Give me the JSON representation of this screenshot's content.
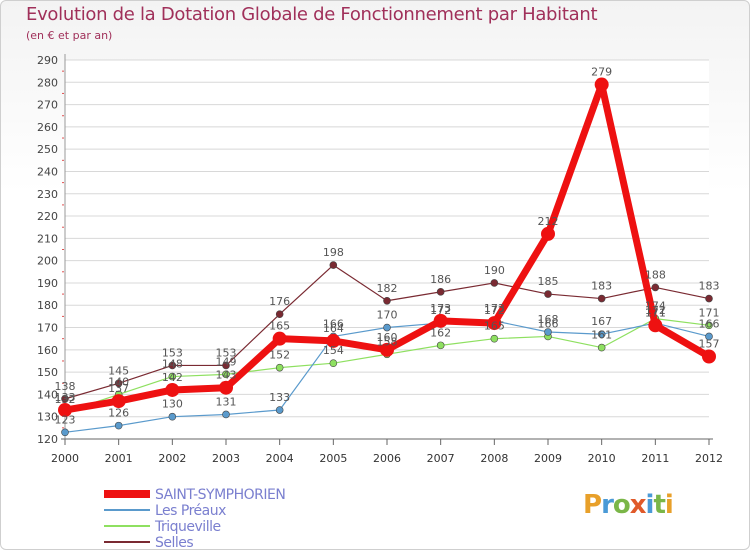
{
  "title": "Evolution de la Dotation Globale de Fonctionnement par Habitant",
  "subtitle": "(en € et par an)",
  "logo": {
    "letters": [
      "P",
      "r",
      "o",
      "x",
      "i",
      "t",
      "i"
    ],
    "colors": [
      "#e8a02a",
      "#4a9ad6",
      "#7ab648",
      "#e05a2a",
      "#4a9ad6",
      "#7ab648",
      "#e8a02a"
    ]
  },
  "chart_data": {
    "type": "line",
    "x": [
      "2000",
      "2001",
      "2002",
      "2003",
      "2004",
      "2005",
      "2006",
      "2007",
      "2008",
      "2009",
      "2010",
      "2011",
      "2012"
    ],
    "ylim": [
      120,
      290
    ],
    "yticks": [
      120,
      130,
      140,
      150,
      160,
      170,
      180,
      190,
      200,
      210,
      220,
      230,
      240,
      250,
      260,
      270,
      280,
      290
    ],
    "series": [
      {
        "name": "Selles",
        "color": "#7a2a32",
        "width": 1.2,
        "marker": 3.5,
        "values": [
          138,
          145,
          153,
          153,
          176,
          198,
          182,
          186,
          190,
          185,
          183,
          188,
          183
        ]
      },
      {
        "name": "Triqueville",
        "color": "#8ee060",
        "width": 1.2,
        "marker": 3.5,
        "values": [
          132,
          140,
          148,
          149,
          152,
          154,
          158,
          162,
          165,
          166,
          161,
          174,
          171
        ]
      },
      {
        "name": "Les Préaux",
        "color": "#5a9acc",
        "width": 1.2,
        "marker": 3.5,
        "values": [
          123,
          126,
          130,
          131,
          133,
          166,
          170,
          172,
          173,
          168,
          167,
          172,
          166
        ]
      },
      {
        "name": "SAINT-SYMPHORIEN",
        "color": "#ee1111",
        "width": 7,
        "marker": 7,
        "values": [
          133,
          137,
          142,
          143,
          165,
          164,
          160,
          173,
          172,
          212,
          279,
          171,
          157
        ]
      }
    ],
    "legend_order": [
      "SAINT-SYMPHORIEN",
      "Les Préaux",
      "Triqueville",
      "Selles"
    ],
    "legend_position": "bottom-left"
  }
}
